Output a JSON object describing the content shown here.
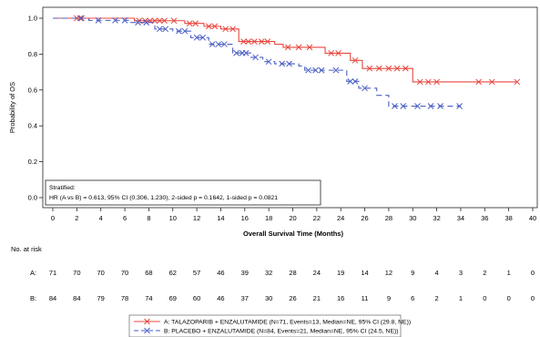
{
  "chart_data": {
    "type": "line",
    "subtype": "kaplan-meier",
    "title": "",
    "xlabel": "Overall Survival Time (Months)",
    "ylabel": "Probability of OS",
    "xlim": [
      0,
      40
    ],
    "ylim": [
      0,
      1
    ],
    "x_ticks": [
      "0",
      "2",
      "4",
      "6",
      "8",
      "10",
      "12",
      "14",
      "16",
      "18",
      "20",
      "22",
      "24",
      "26",
      "28",
      "30",
      "32",
      "34",
      "36",
      "38",
      "40"
    ],
    "y_ticks": [
      "0.0",
      "0.2",
      "0.4",
      "0.6",
      "0.8",
      "1.0"
    ],
    "grid": false,
    "series": [
      {
        "name": "A: TALAZOPARIB + ENZALUTAMIDE (N=71, Events=13, Median=NE, 95% CI (29.8, NE))",
        "color": "#e8473f",
        "line_style": "solid",
        "steps": [
          [
            0,
            1.0
          ],
          [
            6.8,
            0.986
          ],
          [
            11.0,
            0.971
          ],
          [
            12.6,
            0.955
          ],
          [
            14.0,
            0.94
          ],
          [
            15.5,
            0.87
          ],
          [
            18.5,
            0.855
          ],
          [
            19.2,
            0.838
          ],
          [
            22.7,
            0.805
          ],
          [
            24.8,
            0.765
          ],
          [
            25.8,
            0.72
          ],
          [
            30.0,
            0.645
          ],
          [
            38.7,
            0.645
          ]
        ],
        "censored": [
          [
            2.0,
            1.0
          ],
          [
            2.4,
            1.0
          ],
          [
            7.2,
            0.986
          ],
          [
            7.7,
            0.986
          ],
          [
            8.1,
            0.986
          ],
          [
            8.5,
            0.986
          ],
          [
            8.9,
            0.986
          ],
          [
            9.3,
            0.986
          ],
          [
            10.1,
            0.986
          ],
          [
            11.4,
            0.971
          ],
          [
            11.9,
            0.971
          ],
          [
            13.0,
            0.955
          ],
          [
            13.5,
            0.955
          ],
          [
            14.4,
            0.94
          ],
          [
            15.0,
            0.94
          ],
          [
            15.9,
            0.87
          ],
          [
            16.3,
            0.87
          ],
          [
            16.8,
            0.87
          ],
          [
            17.4,
            0.87
          ],
          [
            17.9,
            0.87
          ],
          [
            19.6,
            0.838
          ],
          [
            20.5,
            0.838
          ],
          [
            21.4,
            0.838
          ],
          [
            23.2,
            0.805
          ],
          [
            23.8,
            0.805
          ],
          [
            25.2,
            0.765
          ],
          [
            26.4,
            0.72
          ],
          [
            27.2,
            0.72
          ],
          [
            28.0,
            0.72
          ],
          [
            28.7,
            0.72
          ],
          [
            29.4,
            0.72
          ],
          [
            30.6,
            0.645
          ],
          [
            31.3,
            0.645
          ],
          [
            32.0,
            0.645
          ],
          [
            35.5,
            0.645
          ],
          [
            36.6,
            0.645
          ],
          [
            38.7,
            0.645
          ]
        ]
      },
      {
        "name": "B: PLACEBO + ENZALUTAMIDE (N=84, Events=21, Median=NE, 95% CI (24.5, NE))",
        "color": "#4a5fc4",
        "line_style": "dashed",
        "steps": [
          [
            0,
            1.0
          ],
          [
            3.0,
            0.988
          ],
          [
            6.5,
            0.976
          ],
          [
            8.5,
            0.94
          ],
          [
            10.0,
            0.928
          ],
          [
            11.5,
            0.892
          ],
          [
            13.0,
            0.855
          ],
          [
            15.0,
            0.806
          ],
          [
            16.5,
            0.782
          ],
          [
            17.5,
            0.758
          ],
          [
            18.5,
            0.746
          ],
          [
            20.5,
            0.734
          ],
          [
            21.0,
            0.71
          ],
          [
            24.5,
            0.648
          ],
          [
            25.5,
            0.61
          ],
          [
            27.0,
            0.57
          ],
          [
            28.0,
            0.51
          ],
          [
            34.0,
            0.51
          ]
        ],
        "censored": [
          [
            2.3,
            1.0
          ],
          [
            3.8,
            0.988
          ],
          [
            5.2,
            0.988
          ],
          [
            6.0,
            0.988
          ],
          [
            7.1,
            0.976
          ],
          [
            7.8,
            0.976
          ],
          [
            8.9,
            0.94
          ],
          [
            9.4,
            0.94
          ],
          [
            10.5,
            0.928
          ],
          [
            11.0,
            0.928
          ],
          [
            12.0,
            0.892
          ],
          [
            12.5,
            0.892
          ],
          [
            13.3,
            0.855
          ],
          [
            13.8,
            0.855
          ],
          [
            14.3,
            0.855
          ],
          [
            15.3,
            0.806
          ],
          [
            15.8,
            0.806
          ],
          [
            16.1,
            0.806
          ],
          [
            16.9,
            0.782
          ],
          [
            18.0,
            0.758
          ],
          [
            19.1,
            0.746
          ],
          [
            19.7,
            0.746
          ],
          [
            21.3,
            0.71
          ],
          [
            21.9,
            0.71
          ],
          [
            22.4,
            0.71
          ],
          [
            23.6,
            0.71
          ],
          [
            24.8,
            0.648
          ],
          [
            25.2,
            0.648
          ],
          [
            26.0,
            0.61
          ],
          [
            28.5,
            0.51
          ],
          [
            29.2,
            0.51
          ],
          [
            30.4,
            0.51
          ],
          [
            31.5,
            0.51
          ],
          [
            32.3,
            0.51
          ],
          [
            33.9,
            0.51
          ]
        ]
      }
    ],
    "annotation": {
      "line1": "Stratified:",
      "line2": "HR (A vs B) = 0.613, 95% CI (0.306, 1.230), 2-sided p = 0.1642, 1-sided p = 0.0821"
    },
    "risk_table": {
      "title": "No. at risk",
      "rows": [
        {
          "label": "A:",
          "values": [
            "71",
            "70",
            "70",
            "70",
            "68",
            "62",
            "57",
            "46",
            "39",
            "32",
            "28",
            "24",
            "19",
            "14",
            "12",
            "9",
            "4",
            "3",
            "2",
            "1",
            "0"
          ]
        },
        {
          "label": "B:",
          "values": [
            "84",
            "84",
            "79",
            "78",
            "74",
            "69",
            "60",
            "46",
            "37",
            "30",
            "26",
            "21",
            "16",
            "11",
            "9",
            "6",
            "2",
            "1",
            "0",
            "0",
            "0"
          ]
        }
      ]
    },
    "legend_position": "bottom-center"
  }
}
